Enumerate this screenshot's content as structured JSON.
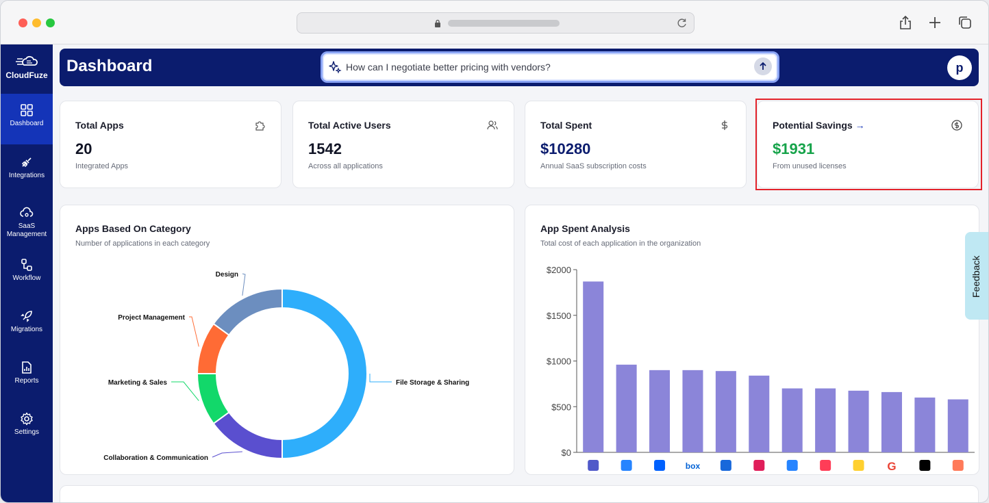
{
  "app": {
    "logo_text": "CloudFuze"
  },
  "header": {
    "title": "Dashboard",
    "search_placeholder": "How can I negotiate better pricing with vendors?",
    "avatar_initial": "p"
  },
  "sidebar": {
    "items": [
      {
        "label": "Dashboard",
        "icon": "dashboard-icon",
        "active": true
      },
      {
        "label": "Integrations",
        "icon": "plug-icon"
      },
      {
        "label": "SaaS Management",
        "icon": "cloud-gear-icon"
      },
      {
        "label": "Workflow",
        "icon": "workflow-icon"
      },
      {
        "label": "Migrations",
        "icon": "rocket-icon"
      },
      {
        "label": "Reports",
        "icon": "report-icon"
      },
      {
        "label": "Settings",
        "icon": "gear-icon"
      }
    ]
  },
  "stats": [
    {
      "title": "Total Apps",
      "value": "20",
      "sub": "Integrated Apps",
      "icon": "puzzle-icon"
    },
    {
      "title": "Total Active Users",
      "value": "1542",
      "sub": "Across all applications",
      "icon": "users-icon"
    },
    {
      "title": "Total Spent",
      "value": "$10280",
      "sub": "Annual SaaS subscription costs",
      "icon": "dollar-icon"
    },
    {
      "title": "Potential Savings",
      "arrow": "→",
      "value": "$1931",
      "sub": "From unused licenses",
      "icon": "dollar-circle-icon"
    }
  ],
  "colors": {
    "navy": "#0b1c6e",
    "accent": "#1434b8",
    "savings_green": "#16a34a",
    "bar": "#8b85d9",
    "highlight_red": "#e3222a"
  },
  "feedback_label": "Feedback",
  "chart_data": [
    {
      "type": "pie",
      "title": "Apps Based On Category",
      "subtitle": "Number of applications in each category",
      "donut": true,
      "slices": [
        {
          "label": "File Storage & Sharing",
          "value": 10,
          "color": "#2eaefb"
        },
        {
          "label": "Collaboration & Communication",
          "value": 3,
          "color": "#5a4fcf"
        },
        {
          "label": "Marketing & Sales",
          "value": 2,
          "color": "#12d86a"
        },
        {
          "label": "Project Management",
          "value": 2,
          "color": "#ff6b35"
        },
        {
          "label": "Design",
          "value": 3,
          "color": "#6c8ebf"
        }
      ]
    },
    {
      "type": "bar",
      "title": "App Spent Analysis",
      "subtitle": "Total cost of each application in the organization",
      "categories": [
        "teams",
        "jira",
        "dropbox",
        "box",
        "confluence",
        "slack",
        "bitbucket",
        "monday",
        "miro",
        "google",
        "notion",
        "hubspot"
      ],
      "values": [
        1870,
        960,
        900,
        900,
        890,
        840,
        700,
        700,
        675,
        660,
        600,
        580
      ],
      "yticks": [
        "$0",
        "$500",
        "$1000",
        "$1500",
        "$2000"
      ],
      "ylim": [
        0,
        2000
      ],
      "box_label": "box"
    }
  ]
}
